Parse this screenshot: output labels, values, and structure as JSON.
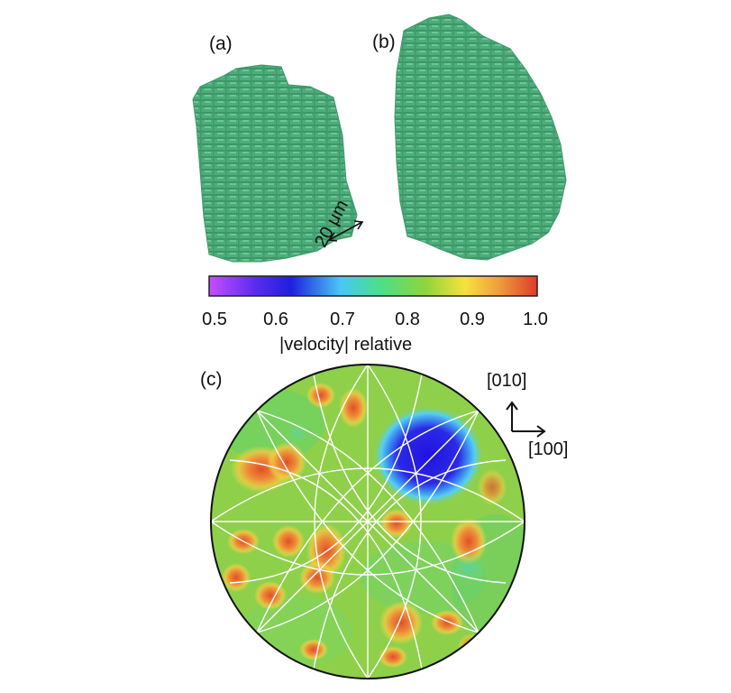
{
  "panels": {
    "a": "(a)",
    "b": "(b)",
    "c": "(c)"
  },
  "scale_bar": "20 μm",
  "colorbar": {
    "ticks": [
      "0.5",
      "0.6",
      "0.7",
      "0.8",
      "0.9",
      "1.0"
    ],
    "label": "|velocity| relative",
    "colors": [
      "#c64dff",
      "#1f1fe0",
      "#47c8f5",
      "#49e089",
      "#8fd53a",
      "#f7e23c",
      "#f0a03c",
      "#e03a2a"
    ]
  },
  "axes": {
    "y_direction": "[010]",
    "x_direction": "[100]"
  },
  "colors": {
    "grain": "#4cad7a",
    "background_map": "#8fd04a",
    "high": "#e05a2e",
    "low": "#2a1fe0"
  }
}
